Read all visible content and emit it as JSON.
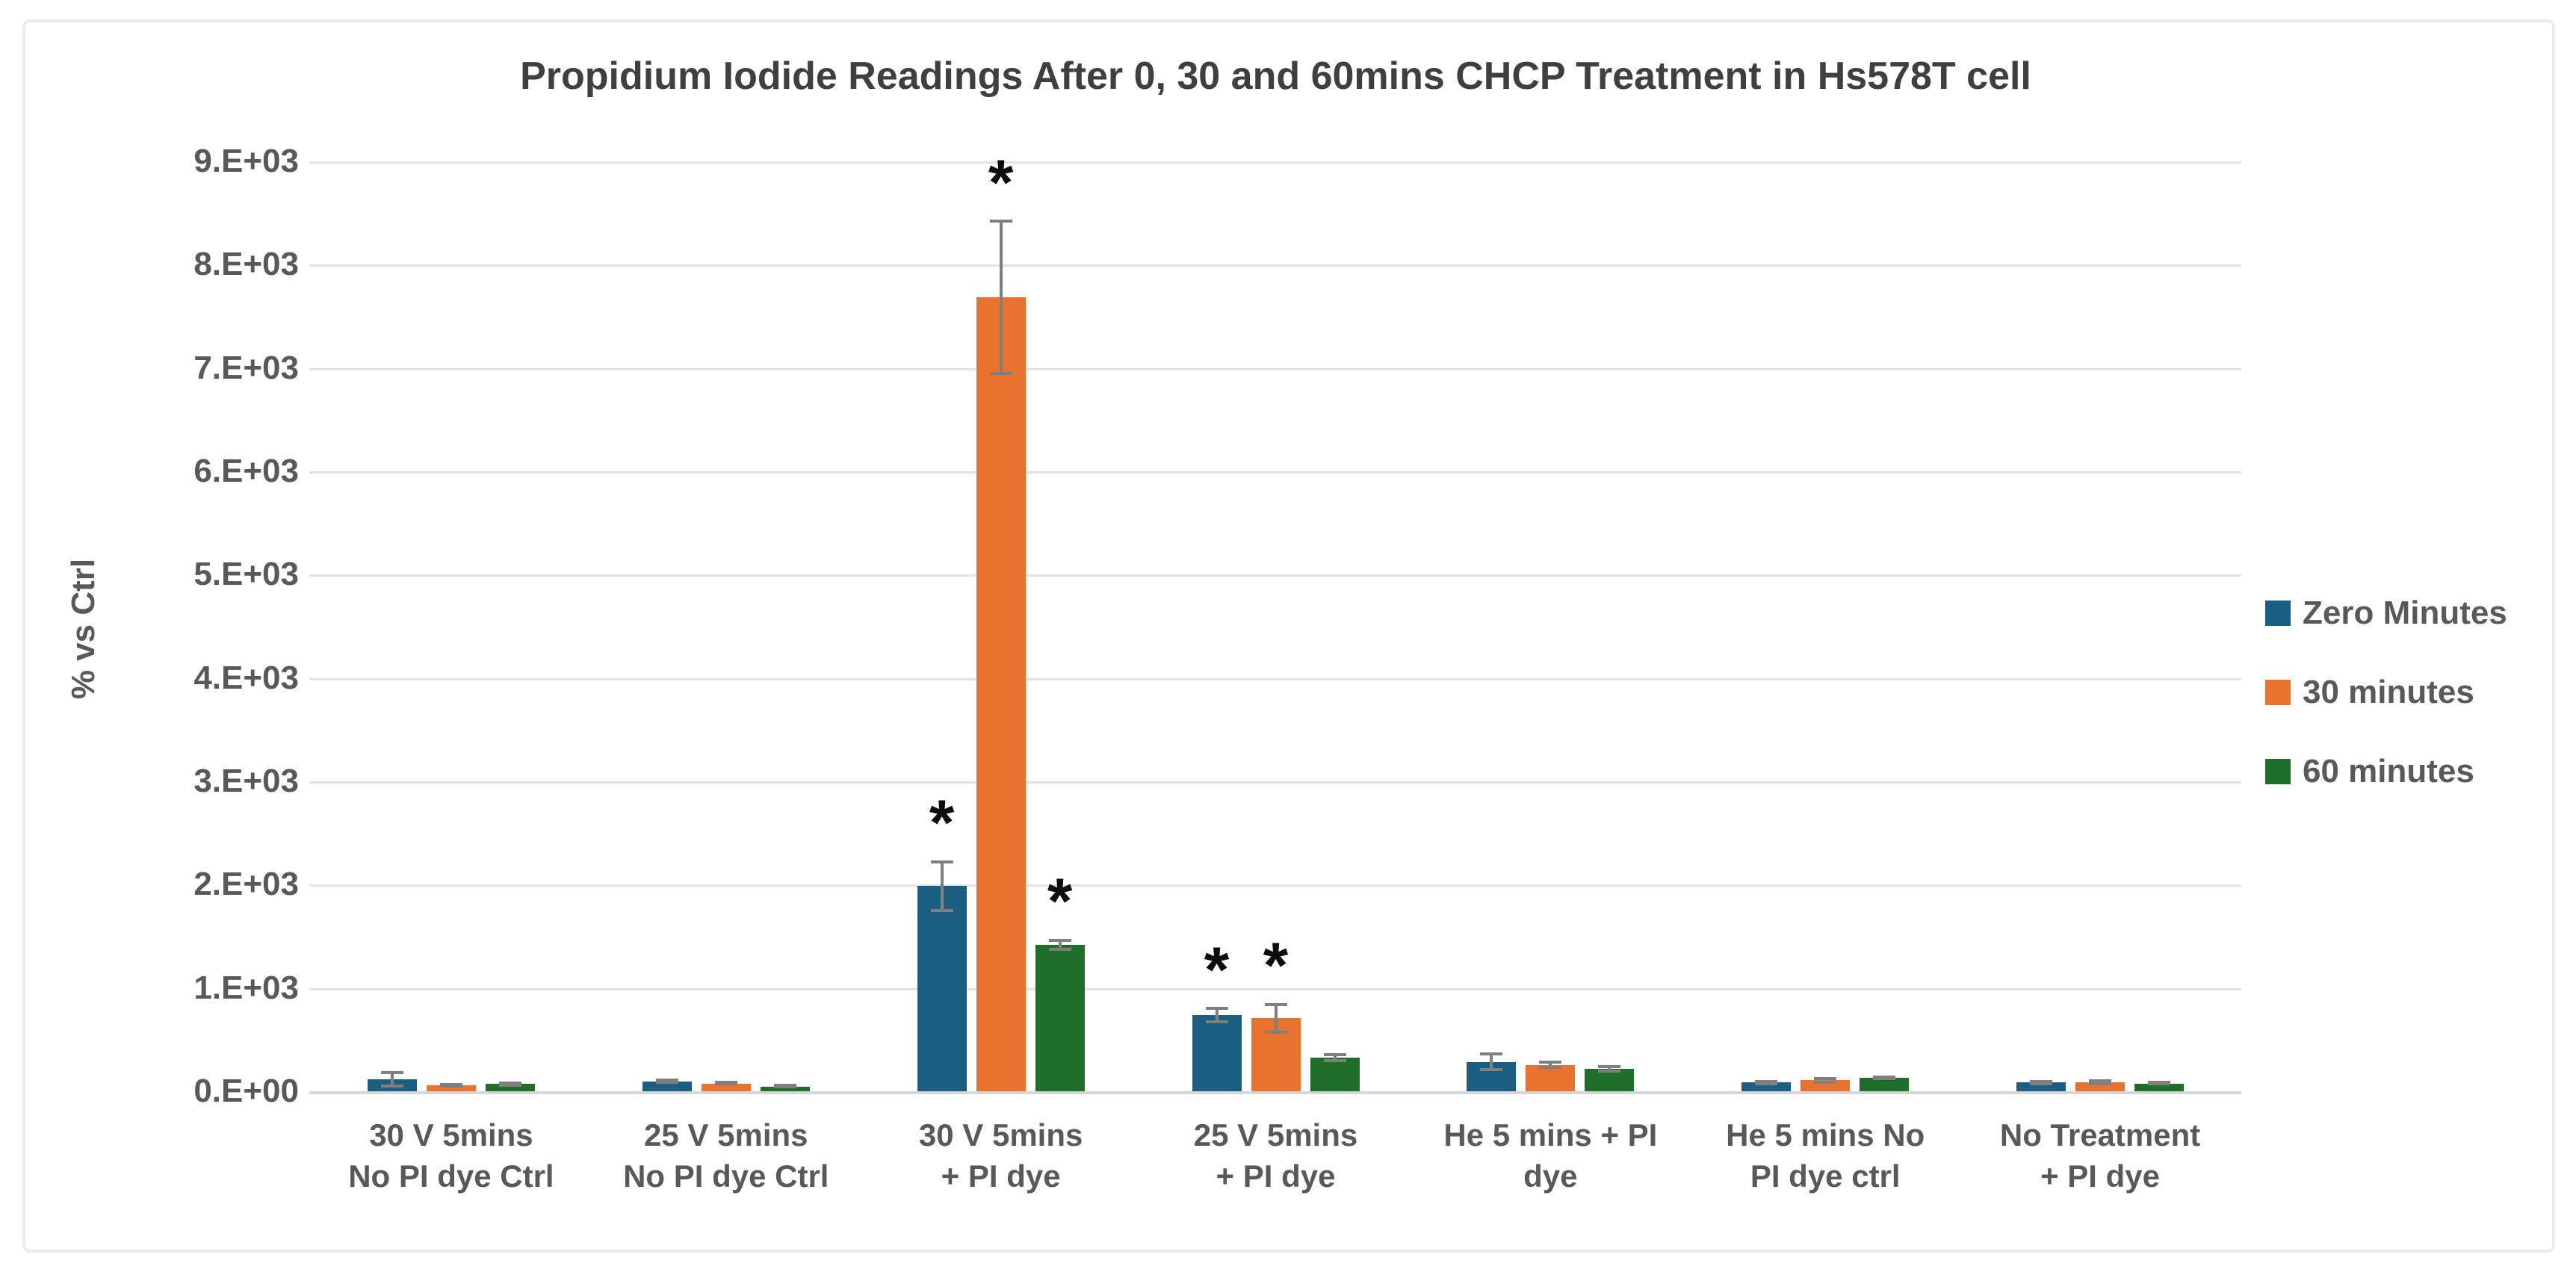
{
  "figure": {
    "border_color": "#ededed",
    "background": "#ffffff"
  },
  "chart_data": {
    "type": "bar",
    "title": "Propidium Iodide Readings After 0, 30 and 60mins CHCP Treatment in Hs578T cell",
    "xlabel": "",
    "ylabel": "% vs Ctrl",
    "ylim": [
      0,
      9000
    ],
    "ytick_step": 1000,
    "ytick_labels": [
      "0.E+00",
      "1.E+03",
      "2.E+03",
      "3.E+03",
      "4.E+03",
      "5.E+03",
      "6.E+03",
      "7.E+03",
      "8.E+03",
      "9.E+03"
    ],
    "grid": true,
    "legend_position": "right",
    "error_bars": true,
    "significance_marker": "*",
    "categories": [
      [
        "30 V 5mins",
        "No PI dye Ctrl"
      ],
      [
        "25 V 5mins",
        "No PI dye Ctrl"
      ],
      [
        "30 V 5mins",
        "+ PI dye"
      ],
      [
        "25 V 5mins",
        "+ PI dye"
      ],
      [
        "He 5 mins + PI",
        "dye"
      ],
      [
        "He 5 mins No",
        "PI dye ctrl"
      ],
      [
        "No Treatment",
        "+ PI dye"
      ]
    ],
    "series": [
      {
        "name": "Zero Minutes",
        "color": "#1a5f82",
        "values": [
          130,
          110,
          2000,
          750,
          300,
          100,
          100
        ],
        "errors": [
          80,
          25,
          250,
          80,
          90,
          25,
          25
        ],
        "significant": [
          false,
          false,
          true,
          true,
          false,
          false,
          false
        ]
      },
      {
        "name": "30 minutes",
        "color": "#e8732e",
        "values": [
          70,
          90,
          7700,
          720,
          270,
          120,
          100
        ],
        "errors": [
          20,
          20,
          750,
          150,
          40,
          30,
          30
        ],
        "significant": [
          false,
          false,
          true,
          true,
          false,
          false,
          false
        ]
      },
      {
        "name": "60 minutes",
        "color": "#1e6f2a",
        "values": [
          85,
          55,
          1430,
          340,
          230,
          145,
          90
        ],
        "errors": [
          25,
          15,
          60,
          40,
          35,
          25,
          20
        ],
        "significant": [
          false,
          false,
          true,
          false,
          false,
          false,
          false
        ]
      }
    ]
  }
}
